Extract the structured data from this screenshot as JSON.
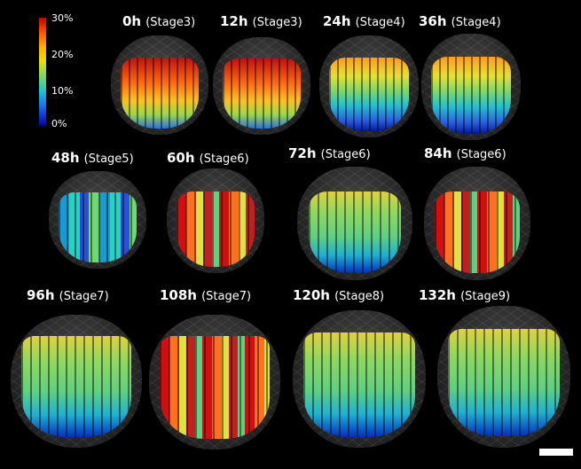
{
  "colorbar": {
    "ticks": [
      "30%",
      "20%",
      "10%",
      "0%"
    ],
    "colors": [
      "#c00000",
      "#ffb400",
      "#6fd86a",
      "#18c8d6",
      "#0000a8"
    ]
  },
  "panels": [
    {
      "time": "0h",
      "stage": "(Stage3)",
      "pattern": "warm"
    },
    {
      "time": "12h",
      "stage": "(Stage3)",
      "pattern": "warm"
    },
    {
      "time": "24h",
      "stage": "(Stage4)",
      "pattern": "mixed"
    },
    {
      "time": "36h",
      "stage": "(Stage4)",
      "pattern": "mixed"
    },
    {
      "time": "48h",
      "stage": "(Stage5)",
      "pattern": "cool"
    },
    {
      "time": "60h",
      "stage": "(Stage6)",
      "pattern": "red"
    },
    {
      "time": "72h",
      "stage": "(Stage6)",
      "pattern": "green"
    },
    {
      "time": "84h",
      "stage": "(Stage6)",
      "pattern": "red"
    },
    {
      "time": "96h",
      "stage": "(Stage7)",
      "pattern": "green"
    },
    {
      "time": "108h",
      "stage": "(Stage7)",
      "pattern": "red"
    },
    {
      "time": "120h",
      "stage": "(Stage8)",
      "pattern": "green"
    },
    {
      "time": "132h",
      "stage": "(Stage9)",
      "pattern": "green"
    }
  ]
}
